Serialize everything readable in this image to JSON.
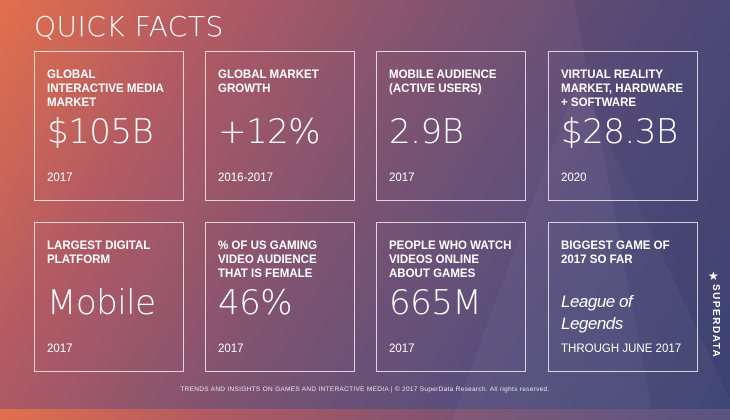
{
  "title": "QUICK FACTS",
  "cards": [
    {
      "label": "GLOBAL INTERACTIVE MEDIA MARKET",
      "value": "$105B",
      "year": "2017"
    },
    {
      "label": "GLOBAL MARKET GROWTH",
      "value": "+12%",
      "year": "2016-2017"
    },
    {
      "label": "MOBILE AUDIENCE (ACTIVE USERS)",
      "value": "2.9B",
      "year": "2017"
    },
    {
      "label": "VIRTUAL REALITY MARKET, HARDWARE + SOFTWARE",
      "value": "$28.3B",
      "year": "2020"
    },
    {
      "label": "LARGEST DIGITAL PLATFORM",
      "value": "Mobile",
      "year": "2017"
    },
    {
      "label": "% OF US GAMING VIDEO AUDIENCE THAT IS FEMALE",
      "value": "46%",
      "year": "2017"
    },
    {
      "label": "PEOPLE WHO WATCH VIDEOS ONLINE ABOUT GAMES",
      "value": "665M",
      "year": "2017"
    },
    {
      "label": "BIGGEST GAME OF 2017 SO FAR",
      "value": "League of Legends",
      "year": "THROUGH JUNE 2017"
    }
  ],
  "footer": "TRENDS AND INSIGHTS ON GAMES AND INTERACTIVE MEDIA  |  © 2017 SuperData Research. All rights reserved.",
  "brand": {
    "name": "SUPERDATA",
    "icon": "star-icon"
  }
}
